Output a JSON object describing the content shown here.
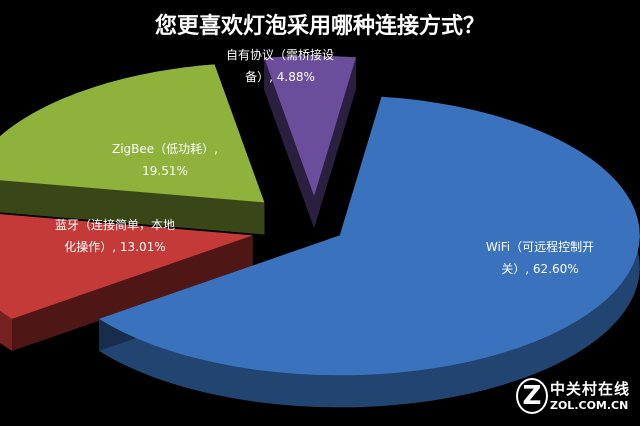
{
  "chart_data": {
    "type": "pie",
    "title": "您更喜欢灯泡采用哪种连接方式？",
    "style": "3d-exploded",
    "slices": [
      {
        "label": "WiFi（可远程控制开关）",
        "value": 62.6,
        "text": "WiFi（可远程控制开关）, 62.60%",
        "color": "#3a72bd"
      },
      {
        "label": "蓝牙（连接简单，本地化操作）",
        "value": 13.01,
        "text": "蓝牙（连接简单，本地化操作）, 13.01%",
        "color": "#c43a38"
      },
      {
        "label": "ZigBee（低功耗）",
        "value": 19.51,
        "text": "ZigBee（低功耗）, 19.51%",
        "color": "#8fb23d"
      },
      {
        "label": "自有协议（需桥接设备）",
        "value": 4.88,
        "text": "自有协议（需桥接设备）, 4.88%",
        "color": "#6b4e9b"
      }
    ]
  },
  "labels": {
    "wifi_1": "WiFi（可远程控制开",
    "wifi_2": "关）, 62.60%",
    "bt_1": "蓝牙（连接简单，本地",
    "bt_2": "化操作）, 13.01%",
    "zb_1": "ZigBee（低功耗）,",
    "zb_2": "19.51%",
    "own_1": "自有协议（需桥接设",
    "own_2": "备）, 4.88%"
  },
  "watermark": {
    "cn": "中关村在线",
    "en": "ZOL.COM.CN",
    "logo": "Z"
  }
}
